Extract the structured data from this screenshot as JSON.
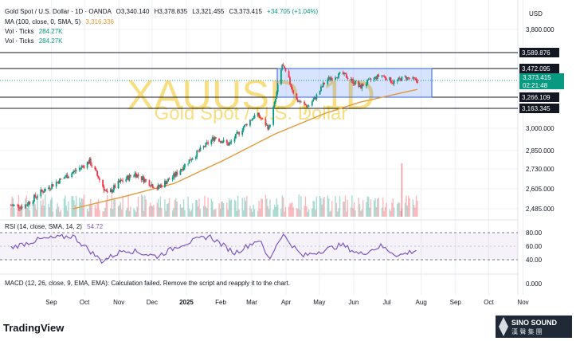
{
  "header": {
    "symbol": "Gold Spot / U.S. Dollar · 1D · OANDA",
    "o": "O3,340.140",
    "h": "H3,378.835",
    "l": "L3,321.455",
    "c": "C3,373.415",
    "chg": "+34.705 (+1.04%)",
    "ma_label": "MA (100, close, 0, SMA, 5)",
    "ma_value": "3,316.336",
    "vol1_label": "Vol · Ticks",
    "vol1_value": "284.27K",
    "vol2_label": "Vol · Ticks",
    "vol2_value": "284.27K",
    "currency": "USD"
  },
  "watermark": {
    "ticker": "XAUUSD, 1D",
    "name": "Gold Spot / U.S. Dollar"
  },
  "rsi": {
    "label": "RSI (14, close, SMA, 14, 2)",
    "value": "54.72",
    "ticks": [
      "80.00",
      "60.00",
      "40.00"
    ]
  },
  "macd": {
    "label": "MACD (12, 26, close, 9, EMA, EMA): Calculation failed. Remove the script and reapply it to the chart.",
    "tick": "0.000"
  },
  "footer": {
    "brand": "TradingView",
    "logo_text": "SINO SOUND",
    "logo_sub": "漢 聲 集 團"
  },
  "colors": {
    "up": "#089981",
    "down": "#f23645",
    "ma": "#e39a3a",
    "rsi": "#7e57c2",
    "box": "#2962ff",
    "watermark": "#f0c419"
  },
  "chart_data": {
    "type": "candlestick",
    "x_tick_labels": [
      "Sep",
      "Oct",
      "Nov",
      "Dec",
      "2025",
      "Feb",
      "Mar",
      "Apr",
      "May",
      "Jun",
      "Jul",
      "Aug",
      "Sep",
      "Oct",
      "Nov"
    ],
    "y_tick_labels": [
      "3,800.000",
      "3,000.000",
      "2,850.000",
      "2,730.000",
      "2,605.000",
      "2,485.000"
    ],
    "price_labels": [
      {
        "value": "3,589.876",
        "style": "line"
      },
      {
        "value": "3,472.095",
        "style": "line"
      },
      {
        "value": "3,373.415",
        "sub": "02:21:48",
        "style": "last"
      },
      {
        "value": "3,266.109",
        "style": "line"
      },
      {
        "value": "3,163.345",
        "style": "line"
      }
    ],
    "horizontal_levels": [
      3589.876,
      3472.095,
      3266.109,
      3163.345
    ],
    "consolidation_box": {
      "top": 3472.095,
      "bottom": 3266.109,
      "start": "Apr",
      "end": "Aug"
    },
    "close_path": [
      [
        "2024-08-20",
        2505
      ],
      [
        "2024-09-01",
        2500
      ],
      [
        "2024-09-15",
        2580
      ],
      [
        "2024-10-01",
        2650
      ],
      [
        "2024-10-20",
        2730
      ],
      [
        "2024-10-30",
        2780
      ],
      [
        "2024-11-15",
        2570
      ],
      [
        "2024-11-25",
        2640
      ],
      [
        "2024-12-10",
        2700
      ],
      [
        "2024-12-30",
        2610
      ],
      [
        "2025-01-15",
        2690
      ],
      [
        "2025-01-30",
        2800
      ],
      [
        "2025-02-20",
        2940
      ],
      [
        "2025-03-05",
        2890
      ],
      [
        "2025-03-30",
        3120
      ],
      [
        "2025-04-10",
        3000
      ],
      [
        "2025-04-22",
        3500
      ],
      [
        "2025-05-05",
        3240
      ],
      [
        "2025-05-15",
        3180
      ],
      [
        "2025-06-01",
        3380
      ],
      [
        "2025-06-15",
        3430
      ],
      [
        "2025-07-01",
        3330
      ],
      [
        "2025-07-20",
        3420
      ],
      [
        "2025-08-01",
        3360
      ],
      [
        "2025-08-10",
        3400
      ],
      [
        "2025-08-22",
        3373.415
      ]
    ],
    "ma_path": [
      [
        "2024-10-15",
        2485
      ],
      [
        "2024-12-01",
        2560
      ],
      [
        "2025-01-15",
        2640
      ],
      [
        "2025-03-01",
        2790
      ],
      [
        "2025-04-15",
        2960
      ],
      [
        "2025-05-30",
        3120
      ],
      [
        "2025-07-01",
        3220
      ],
      [
        "2025-08-22",
        3316.336
      ]
    ],
    "rsi_path": [
      [
        "2024-08-20",
        58
      ],
      [
        "2024-09-15",
        70
      ],
      [
        "2024-10-15",
        75
      ],
      [
        "2024-11-10",
        38
      ],
      [
        "2024-12-01",
        55
      ],
      [
        "2024-12-30",
        45
      ],
      [
        "2025-01-20",
        62
      ],
      [
        "2025-02-15",
        75
      ],
      [
        "2025-03-10",
        50
      ],
      [
        "2025-04-01",
        70
      ],
      [
        "2025-04-10",
        40
      ],
      [
        "2025-04-22",
        78
      ],
      [
        "2025-05-10",
        45
      ],
      [
        "2025-06-15",
        62
      ],
      [
        "2025-07-01",
        48
      ],
      [
        "2025-07-20",
        60
      ],
      [
        "2025-08-05",
        46
      ],
      [
        "2025-08-22",
        54.72
      ]
    ],
    "volume_spike": {
      "date": "2025-08-08",
      "note": "tall volume bar"
    }
  }
}
